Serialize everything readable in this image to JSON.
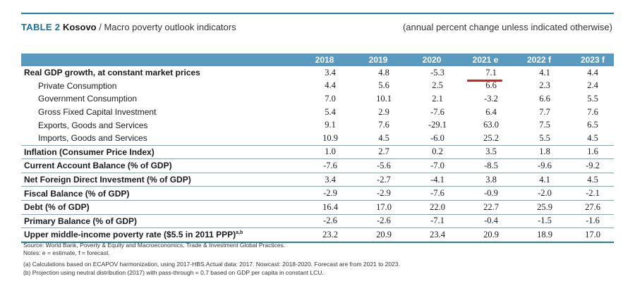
{
  "title": {
    "number": "TABLE 2",
    "country": "Kosovo",
    "separator": " / ",
    "text": "Macro poverty outlook indicators",
    "note": "(annual percent change unless indicated otherwise)"
  },
  "years": [
    "2018",
    "2019",
    "2020",
    "2021 e",
    "2022 f",
    "2023 f"
  ],
  "rows": [
    {
      "label": "Real GDP growth, at constant market prices",
      "values": [
        "3.4",
        "4.8",
        "-5.3",
        "7.1",
        "4.1",
        "4.4"
      ]
    },
    {
      "label": "Private Consumption",
      "values": [
        "4.4",
        "5.6",
        "2.5",
        "6.6",
        "2.3",
        "2.4"
      ]
    },
    {
      "label": "Government Consumption",
      "values": [
        "7.0",
        "10.1",
        "2.1",
        "-3.2",
        "6.6",
        "5.5"
      ]
    },
    {
      "label": "Gross Fixed Capital Investment",
      "values": [
        "5.4",
        "2.9",
        "-7.6",
        "6.4",
        "7.7",
        "7.6"
      ]
    },
    {
      "label": "Exports, Goods and Services",
      "values": [
        "9.1",
        "7.6",
        "-29.1",
        "63.0",
        "7.5",
        "6.5"
      ]
    },
    {
      "label": "Imports, Goods and Services",
      "values": [
        "10.9",
        "4.5",
        "-6.0",
        "25.2",
        "5.5",
        "4.5"
      ]
    },
    {
      "label": "Inflation (Consumer Price Index)",
      "values": [
        "1.0",
        "2.7",
        "0.2",
        "3.5",
        "1.8",
        "1.6"
      ]
    },
    {
      "label": "Current Account Balance (% of GDP)",
      "values": [
        "-7.6",
        "-5.6",
        "-7.0",
        "-8.5",
        "-9.6",
        "-9.2"
      ]
    },
    {
      "label": "Net Foreign Direct Investment (% of GDP)",
      "values": [
        "3.4",
        "-2.7",
        "-4.1",
        "3.8",
        "4.1",
        "4.5"
      ]
    },
    {
      "label": "Fiscal Balance (% of GDP)",
      "values": [
        "-2.9",
        "-2.9",
        "-7.6",
        "-0.9",
        "-2.0",
        "-2.1"
      ]
    },
    {
      "label": "Debt (% of GDP)",
      "values": [
        "16.4",
        "17.0",
        "22.0",
        "22.7",
        "25.9",
        "27.6"
      ]
    },
    {
      "label": "Primary Balance (% of GDP)",
      "values": [
        "-2.6",
        "-2.6",
        "-7.1",
        "-0.4",
        "-1.5",
        "-1.6"
      ]
    },
    {
      "label": "Upper middle-income poverty rate ($5.5 in 2011 PPP)",
      "sup": "a,b",
      "values": [
        "23.2",
        "20.9",
        "23.4",
        "20.9",
        "18.9",
        "17.0"
      ]
    }
  ],
  "footnotes": {
    "source": "Source: World Bank, Poverty & Equity and Macroeconomics, Trade & Investment Global Practices.",
    "notes": "Notes: e = estimate, f = forecast.",
    "a": "(a) Calculations based on ECAPOV harmonization, using 2017-HBS.Actual data: 2017. Nowcast: 2018-2020. Forecast are from 2021 to 2023.",
    "b": "(b) Projection using neutral distribution (2017) with pass-through = 0.7 based on GDP per capita in constant LCU."
  }
}
